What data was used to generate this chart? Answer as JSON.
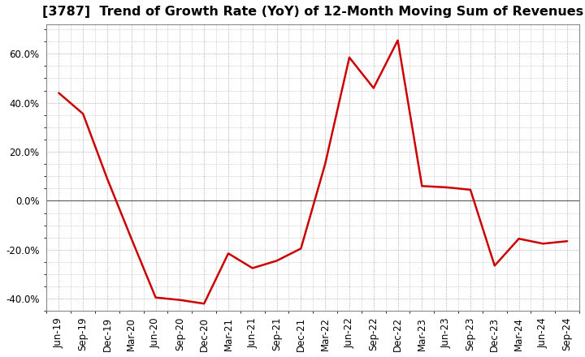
{
  "title": "[3787]  Trend of Growth Rate (YoY) of 12-Month Moving Sum of Revenues",
  "line_color": "#cc0000",
  "background_color": "#ffffff",
  "plot_bg_color": "#ffffff",
  "grid_color": "#999999",
  "zero_line_color": "#666666",
  "spine_color": "#888888",
  "ylim": [
    -0.45,
    0.72
  ],
  "yticks": [
    -0.4,
    -0.2,
    0.0,
    0.2,
    0.4,
    0.6
  ],
  "x_labels": [
    "Jun-19",
    "Sep-19",
    "Dec-19",
    "Mar-20",
    "Jun-20",
    "Sep-20",
    "Dec-20",
    "Mar-21",
    "Jun-21",
    "Sep-21",
    "Dec-21",
    "Mar-22",
    "Jun-22",
    "Sep-22",
    "Dec-22",
    "Mar-23",
    "Jun-23",
    "Sep-23",
    "Dec-23",
    "Mar-24",
    "Jun-24",
    "Sep-24"
  ],
  "values": [
    0.44,
    0.355,
    0.09,
    -0.155,
    -0.395,
    -0.405,
    -0.42,
    -0.215,
    -0.275,
    -0.245,
    -0.195,
    0.15,
    0.585,
    0.46,
    0.655,
    0.06,
    0.055,
    0.045,
    -0.265,
    -0.155,
    -0.175,
    -0.165
  ],
  "title_fontsize": 11.5,
  "tick_fontsize": 8.5,
  "line_width": 1.8
}
